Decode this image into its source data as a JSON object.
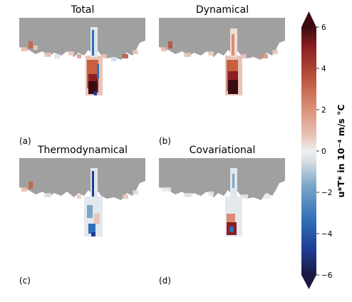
{
  "panels": [
    {
      "id": "total",
      "title": "Total",
      "label": "(a)"
    },
    {
      "id": "dynamical",
      "title": "Dynamical",
      "label": "(b)"
    },
    {
      "id": "thermodynamical",
      "title": "Thermodynamical",
      "label": "(c)"
    },
    {
      "id": "covariational",
      "title": "Covariational",
      "label": "(d)"
    }
  ],
  "colorbar": {
    "label": "u*T* in 10⁻⁴ m/s °C",
    "ticks": [
      6,
      4,
      2,
      0,
      -2,
      -4,
      -6
    ],
    "tick_labels": [
      "6",
      "4",
      "2",
      "0",
      "−2",
      "−4",
      "−6"
    ],
    "range": [
      -6,
      6
    ],
    "extend": "both",
    "colormap": "balance (dark blue → white → dark red)"
  },
  "colors": {
    "land": "#a0a0a0",
    "cmap_stops": [
      "#1a1a40",
      "#1f3b95",
      "#2f6fb7",
      "#7aa6c9",
      "#d9dfe3",
      "#f0f0f0",
      "#e8c4b8",
      "#d98c72",
      "#b8503b",
      "#8c1f23",
      "#3c0a12"
    ]
  },
  "chart_data": {
    "type": "heatmap",
    "panels": [
      "Total",
      "Dynamical",
      "Thermodynamical",
      "Covariational"
    ],
    "value_range": [
      -6,
      6
    ],
    "units": "10^-4 m/s °C"
  }
}
